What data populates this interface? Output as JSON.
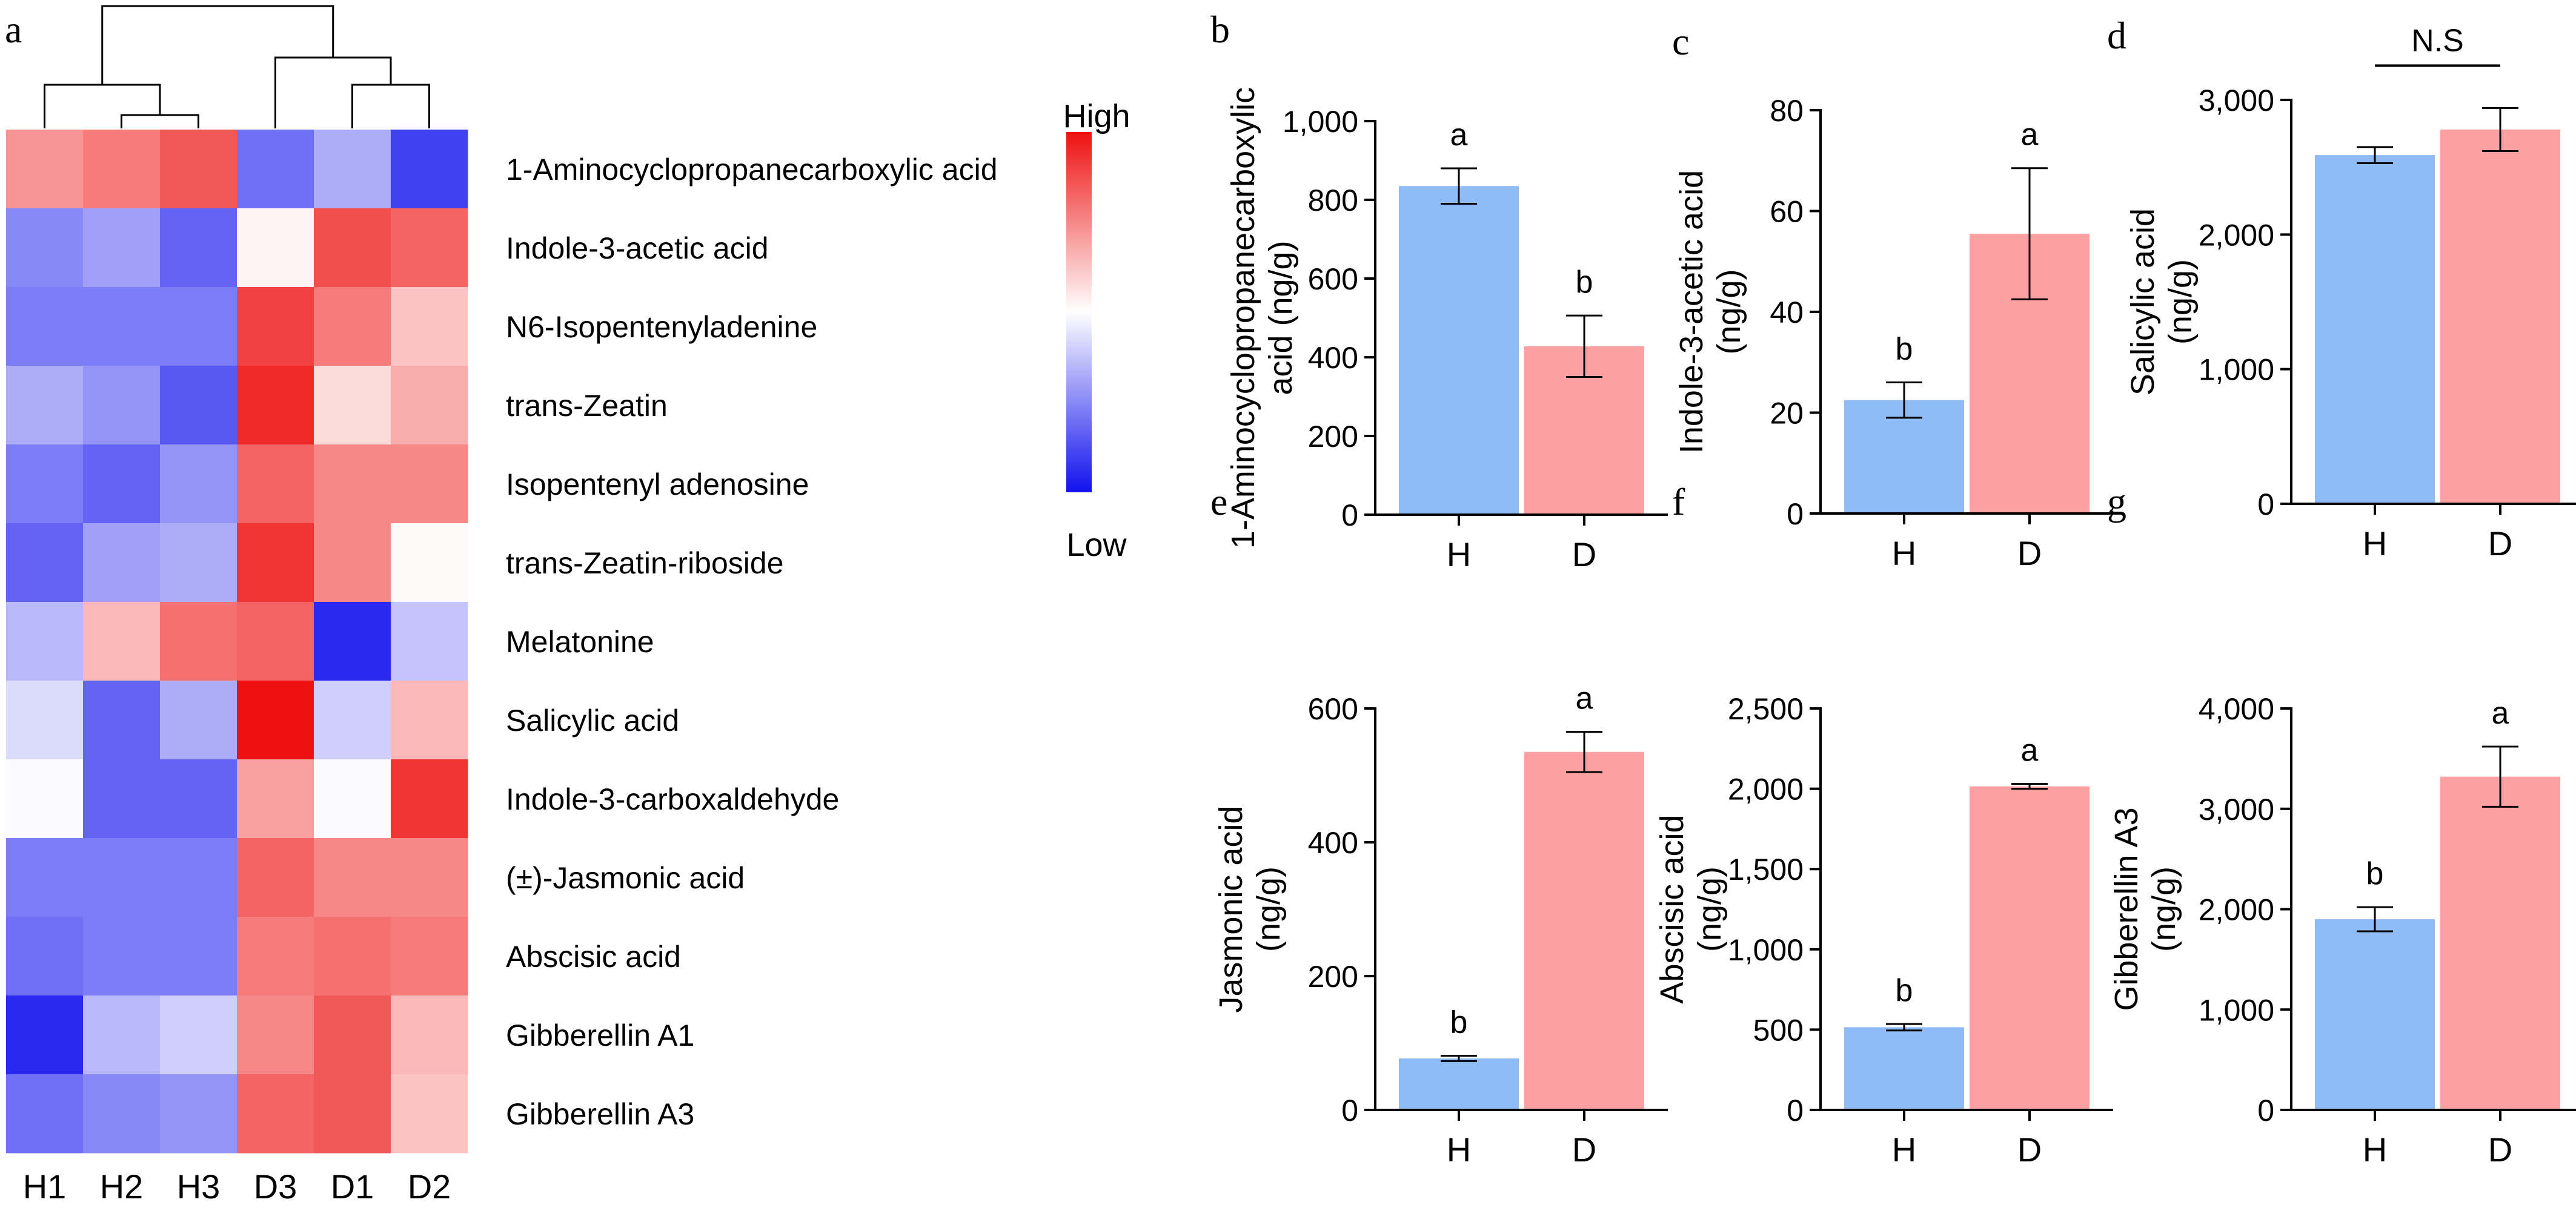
{
  "chart_data": [
    {
      "panel": "a",
      "type": "heatmap",
      "columns": [
        "H1",
        "H2",
        "H3",
        "D3",
        "D1",
        "D2"
      ],
      "rows": [
        "1-Aminocyclopropanecarboxylic acid",
        "Indole-3-acetic acid",
        "N6-Isopentenyladenine",
        "trans-Zeatin",
        "Isopentenyl adenosine",
        "trans-Zeatin-riboside",
        "Melatonine",
        "Salicylic acid",
        "Indole-3-carboxaldehyde",
        "(±)-Jasmonic acid",
        "Abscisic acid",
        "Gibberellin A1",
        "Gibberellin A3"
      ],
      "values": [
        [
          0.45,
          0.55,
          0.7,
          -0.6,
          -0.35,
          -0.8
        ],
        [
          -0.5,
          -0.4,
          -0.65,
          0.05,
          0.75,
          0.65
        ],
        [
          -0.55,
          -0.55,
          -0.55,
          0.8,
          0.55,
          0.25
        ],
        [
          -0.35,
          -0.45,
          -0.7,
          0.9,
          0.15,
          0.35
        ],
        [
          -0.55,
          -0.65,
          -0.45,
          0.65,
          0.5,
          0.5
        ],
        [
          -0.65,
          -0.4,
          -0.35,
          0.85,
          0.5,
          0.02
        ],
        [
          -0.3,
          0.3,
          0.6,
          0.65,
          -0.9,
          -0.25
        ],
        [
          -0.15,
          -0.65,
          -0.35,
          1.0,
          -0.2,
          0.3
        ],
        [
          -0.02,
          -0.65,
          -0.65,
          0.4,
          -0.02,
          0.85
        ],
        [
          -0.55,
          -0.55,
          -0.55,
          0.65,
          0.5,
          0.5
        ],
        [
          -0.6,
          -0.55,
          -0.55,
          0.55,
          0.6,
          0.55
        ],
        [
          -0.9,
          -0.3,
          -0.2,
          0.5,
          0.7,
          0.3
        ],
        [
          -0.6,
          -0.5,
          -0.45,
          0.65,
          0.7,
          0.25
        ]
      ],
      "scale": [
        -1,
        1
      ],
      "legend": {
        "high": "High",
        "low": "Low"
      },
      "colors": {
        "high": "#ee1111",
        "mid": "#ffffff",
        "low": "#1111ee"
      }
    },
    {
      "panel": "b",
      "type": "bar",
      "categories": [
        "H",
        "D"
      ],
      "values": [
        835,
        428
      ],
      "errors": [
        45,
        78
      ],
      "significance": [
        "a",
        "b"
      ],
      "ylabel": [
        "1-Aminocyclopropanecarboxylic",
        "acid (ng/g)"
      ],
      "ylim": [
        0,
        1000
      ],
      "yticks": [
        0,
        200,
        400,
        600,
        800,
        1000
      ],
      "ytick_labels": [
        "0",
        "200",
        "400",
        "600",
        "800",
        "1,000"
      ]
    },
    {
      "panel": "c",
      "type": "bar",
      "categories": [
        "H",
        "D"
      ],
      "values": [
        22.5,
        55.5
      ],
      "errors": [
        3.5,
        13
      ],
      "significance": [
        "b",
        "a"
      ],
      "ylabel": [
        "Indole-3-acetic acid",
        "(ng/g)"
      ],
      "ylim": [
        0,
        80
      ],
      "yticks": [
        0,
        20,
        40,
        60,
        80
      ],
      "ytick_labels": [
        "0",
        "20",
        "40",
        "60",
        "80"
      ]
    },
    {
      "panel": "d",
      "type": "bar",
      "categories": [
        "H",
        "D"
      ],
      "values": [
        2590,
        2780
      ],
      "errors": [
        60,
        160
      ],
      "significance_bracket": "N.S",
      "ylabel": [
        "Salicylic acid",
        "(ng/g)"
      ],
      "ylim": [
        0,
        3000
      ],
      "yticks": [
        0,
        1000,
        2000,
        3000
      ],
      "ytick_labels": [
        "0",
        "1,000",
        "2,000",
        "3,000"
      ]
    },
    {
      "panel": "e",
      "type": "bar",
      "categories": [
        "H",
        "D"
      ],
      "values": [
        77,
        535
      ],
      "errors": [
        4,
        30
      ],
      "significance": [
        "b",
        "a"
      ],
      "ylabel": [
        "Jasmonic acid",
        "(ng/g)"
      ],
      "ylim": [
        0,
        600
      ],
      "yticks": [
        0,
        200,
        400,
        600
      ],
      "ytick_labels": [
        "0",
        "200",
        "400",
        "600"
      ]
    },
    {
      "panel": "f",
      "type": "bar",
      "categories": [
        "H",
        "D"
      ],
      "values": [
        515,
        2015
      ],
      "errors": [
        20,
        15
      ],
      "significance": [
        "b",
        "a"
      ],
      "ylabel": [
        "Abscisic acid",
        "(ng/g)"
      ],
      "ylim": [
        0,
        2500
      ],
      "yticks": [
        0,
        500,
        1000,
        1500,
        2000,
        2500
      ],
      "ytick_labels": [
        "0",
        "500",
        "1,000",
        "1,500",
        "2,000",
        "2,500"
      ]
    },
    {
      "panel": "g",
      "type": "bar",
      "categories": [
        "H",
        "D"
      ],
      "values": [
        1900,
        3320
      ],
      "errors": [
        120,
        300
      ],
      "significance": [
        "b",
        "a"
      ],
      "ylabel": [
        "Gibberellin A3",
        "(ng/g)"
      ],
      "ylim": [
        0,
        4000
      ],
      "yticks": [
        0,
        1000,
        2000,
        3000,
        4000
      ],
      "ytick_labels": [
        "0",
        "1,000",
        "2,000",
        "3,000",
        "4,000"
      ]
    }
  ],
  "colors": {
    "H": "#8fbcf7",
    "D": "#fca0a1"
  }
}
